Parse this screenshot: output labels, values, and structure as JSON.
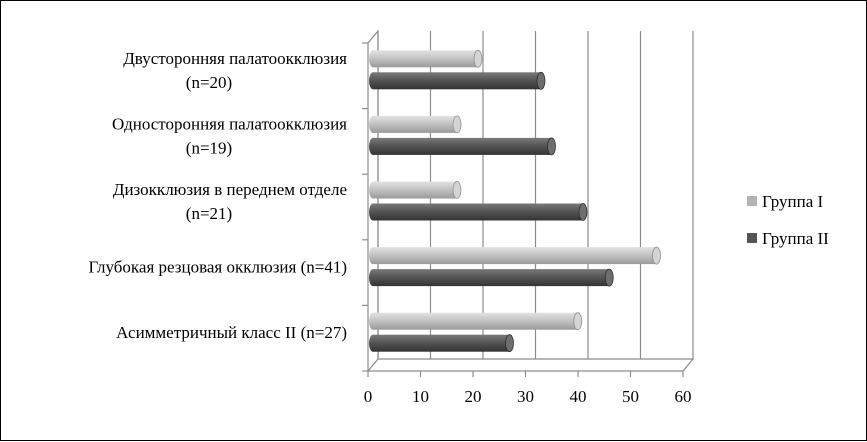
{
  "chart_data": {
    "type": "bar",
    "orientation": "horizontal",
    "style": "3d-cylinder",
    "categories": [
      [
        "Двусторонняя палатоокклюзия",
        "(n=20)"
      ],
      [
        "Односторонняя палатоокклюзия",
        "(n=19)"
      ],
      [
        "Дизокклюзия в переднем отделе",
        "(n=21)"
      ],
      [
        "Глубокая резцовая окклюзия (n=41)"
      ],
      [
        "Асимметричный класс II (n=27)"
      ]
    ],
    "series": [
      {
        "name": "Группа I",
        "color": "#b3b3b3",
        "values": [
          20,
          16,
          16,
          54,
          39
        ]
      },
      {
        "name": "Группа II",
        "color": "#555555",
        "values": [
          32,
          34,
          40,
          45,
          26
        ]
      }
    ],
    "xlim": [
      0,
      60
    ],
    "xticks": [
      "0",
      "10",
      "20",
      "30",
      "40",
      "50",
      "60"
    ],
    "grid": true,
    "legend_position": "right"
  }
}
